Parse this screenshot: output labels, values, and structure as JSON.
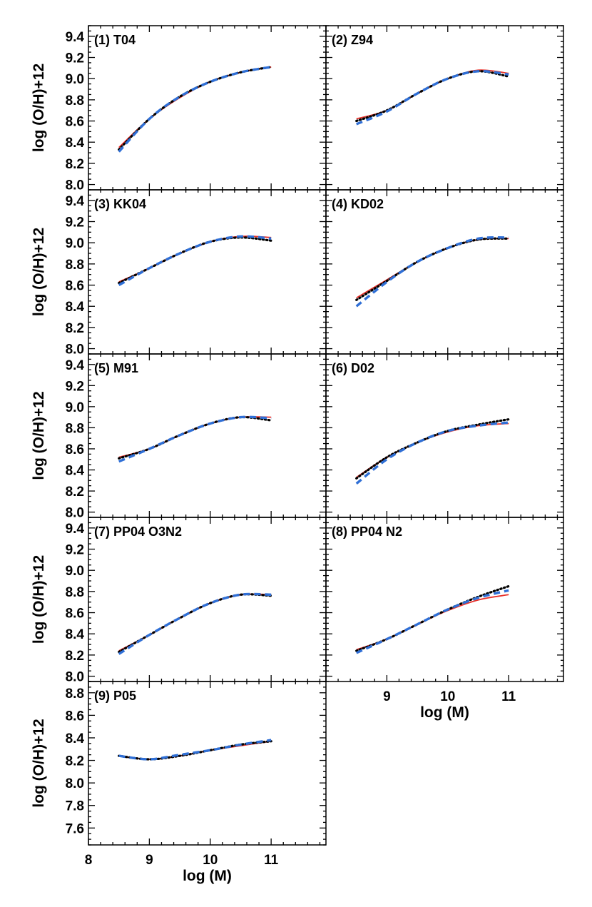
{
  "chart_data": [
    {
      "type": "line",
      "panel_label": "(1) T04",
      "ylabel": "log (O/H)+12",
      "xlabel": "",
      "xlim": [
        8,
        11.9
      ],
      "ylim": [
        7.95,
        9.5
      ],
      "yticks": [
        "8.0",
        "8.2",
        "8.4",
        "8.6",
        "8.8",
        "9.0",
        "9.2",
        "9.4"
      ],
      "xticks": [],
      "series": [
        {
          "name": "red-solid",
          "x": [
            8.5,
            9,
            9.5,
            10,
            10.5,
            11
          ],
          "values": [
            8.35,
            8.62,
            8.82,
            8.97,
            9.06,
            9.11
          ]
        },
        {
          "name": "black-dotted",
          "x": [
            8.5,
            9,
            9.5,
            10,
            10.5,
            11
          ],
          "values": [
            8.33,
            8.62,
            8.83,
            8.97,
            9.06,
            9.11
          ]
        },
        {
          "name": "blue-dashed",
          "x": [
            8.5,
            9,
            9.5,
            10,
            10.5,
            11
          ],
          "values": [
            8.31,
            8.62,
            8.83,
            8.97,
            9.06,
            9.11
          ]
        }
      ]
    },
    {
      "type": "line",
      "panel_label": "(2) Z94",
      "ylabel": "",
      "xlabel": "",
      "xlim": [
        8,
        11.9
      ],
      "ylim": [
        7.95,
        9.5
      ],
      "yticks": [],
      "xticks": [],
      "series": [
        {
          "name": "red-solid",
          "x": [
            8.5,
            9,
            9.5,
            10,
            10.5,
            11
          ],
          "values": [
            8.62,
            8.7,
            8.86,
            9.0,
            9.08,
            9.05
          ]
        },
        {
          "name": "black-dotted",
          "x": [
            8.5,
            9,
            9.5,
            10,
            10.5,
            11
          ],
          "values": [
            8.6,
            8.7,
            8.86,
            9.0,
            9.07,
            9.02
          ]
        },
        {
          "name": "blue-dashed",
          "x": [
            8.5,
            9,
            9.5,
            10,
            10.5,
            11
          ],
          "values": [
            8.57,
            8.69,
            8.86,
            9.0,
            9.07,
            9.04
          ]
        }
      ]
    },
    {
      "type": "line",
      "panel_label": "(3) KK04",
      "ylabel": "log (O/H)+12",
      "xlabel": "",
      "xlim": [
        8,
        11.9
      ],
      "ylim": [
        7.95,
        9.5
      ],
      "yticks": [
        "8.0",
        "8.2",
        "8.4",
        "8.6",
        "8.8",
        "9.0",
        "9.2",
        "9.4"
      ],
      "xticks": [],
      "series": [
        {
          "name": "red-solid",
          "x": [
            8.5,
            9,
            9.5,
            10,
            10.5,
            11
          ],
          "values": [
            8.63,
            8.76,
            8.9,
            9.01,
            9.06,
            9.05
          ]
        },
        {
          "name": "black-dotted",
          "x": [
            8.5,
            9,
            9.5,
            10,
            10.5,
            11
          ],
          "values": [
            8.62,
            8.76,
            8.9,
            9.01,
            9.05,
            9.02
          ]
        },
        {
          "name": "blue-dashed",
          "x": [
            8.5,
            9,
            9.5,
            10,
            10.5,
            11
          ],
          "values": [
            8.6,
            8.76,
            8.9,
            9.01,
            9.06,
            9.04
          ]
        }
      ]
    },
    {
      "type": "line",
      "panel_label": "(4) KD02",
      "ylabel": "",
      "xlabel": "",
      "xlim": [
        8,
        11.9
      ],
      "ylim": [
        7.95,
        9.5
      ],
      "yticks": [],
      "xticks": [],
      "series": [
        {
          "name": "red-solid",
          "x": [
            8.5,
            9,
            9.5,
            10,
            10.5,
            11
          ],
          "values": [
            8.48,
            8.65,
            8.82,
            8.95,
            9.03,
            9.04
          ]
        },
        {
          "name": "black-dotted",
          "x": [
            8.5,
            9,
            9.5,
            10,
            10.5,
            11
          ],
          "values": [
            8.46,
            8.64,
            8.82,
            8.95,
            9.03,
            9.04
          ]
        },
        {
          "name": "blue-dashed",
          "x": [
            8.5,
            9,
            9.5,
            10,
            10.5,
            11
          ],
          "values": [
            8.4,
            8.63,
            8.82,
            8.95,
            9.04,
            9.05
          ]
        }
      ]
    },
    {
      "type": "line",
      "panel_label": "(5) M91",
      "ylabel": "log (O/H)+12",
      "xlabel": "",
      "xlim": [
        8,
        11.9
      ],
      "ylim": [
        7.95,
        9.5
      ],
      "yticks": [
        "8.0",
        "8.2",
        "8.4",
        "8.6",
        "8.8",
        "9.0",
        "9.2",
        "9.4"
      ],
      "xticks": [],
      "series": [
        {
          "name": "red-solid",
          "x": [
            8.5,
            9,
            9.5,
            10,
            10.5,
            11
          ],
          "values": [
            8.52,
            8.6,
            8.73,
            8.84,
            8.9,
            8.9
          ]
        },
        {
          "name": "black-dotted",
          "x": [
            8.5,
            9,
            9.5,
            10,
            10.5,
            11
          ],
          "values": [
            8.51,
            8.6,
            8.73,
            8.84,
            8.9,
            8.87
          ]
        },
        {
          "name": "blue-dashed",
          "x": [
            8.5,
            9,
            9.5,
            10,
            10.5,
            11
          ],
          "values": [
            8.48,
            8.6,
            8.73,
            8.84,
            8.9,
            8.89
          ]
        }
      ]
    },
    {
      "type": "line",
      "panel_label": "(6) D02",
      "ylabel": "",
      "xlabel": "",
      "xlim": [
        8,
        11.9
      ],
      "ylim": [
        7.95,
        9.5
      ],
      "yticks": [],
      "xticks": [],
      "series": [
        {
          "name": "red-solid",
          "x": [
            8.5,
            9,
            9.5,
            10,
            10.5,
            11
          ],
          "values": [
            8.33,
            8.52,
            8.66,
            8.76,
            8.82,
            8.84
          ]
        },
        {
          "name": "black-dotted",
          "x": [
            8.5,
            9,
            9.5,
            10,
            10.5,
            11
          ],
          "values": [
            8.32,
            8.52,
            8.66,
            8.77,
            8.83,
            8.88
          ]
        },
        {
          "name": "blue-dashed",
          "x": [
            8.5,
            9,
            9.5,
            10,
            10.5,
            11
          ],
          "values": [
            8.27,
            8.5,
            8.66,
            8.77,
            8.82,
            8.85
          ]
        }
      ]
    },
    {
      "type": "line",
      "panel_label": "(7) PP04 O3N2",
      "ylabel": "log (O/H)+12",
      "xlabel": "",
      "xlim": [
        8,
        11.9
      ],
      "ylim": [
        7.95,
        9.5
      ],
      "yticks": [
        "8.0",
        "8.2",
        "8.4",
        "8.6",
        "8.8",
        "9.0",
        "9.2",
        "9.4"
      ],
      "xticks": [],
      "series": [
        {
          "name": "red-solid",
          "x": [
            8.5,
            9,
            9.5,
            10,
            10.5,
            11
          ],
          "values": [
            8.24,
            8.39,
            8.55,
            8.69,
            8.77,
            8.77
          ]
        },
        {
          "name": "black-dotted",
          "x": [
            8.5,
            9,
            9.5,
            10,
            10.5,
            11
          ],
          "values": [
            8.23,
            8.39,
            8.55,
            8.69,
            8.77,
            8.76
          ]
        },
        {
          "name": "blue-dashed",
          "x": [
            8.5,
            9,
            9.5,
            10,
            10.5,
            11
          ],
          "values": [
            8.21,
            8.39,
            8.55,
            8.69,
            8.77,
            8.77
          ]
        }
      ]
    },
    {
      "type": "line",
      "panel_label": "(8) PP04 N2",
      "ylabel": "",
      "xlabel": "log (M)",
      "xlim": [
        8,
        11.9
      ],
      "ylim": [
        7.95,
        9.5
      ],
      "yticks": [],
      "xticks": [
        "9",
        "10",
        "11"
      ],
      "series": [
        {
          "name": "red-solid",
          "x": [
            8.5,
            9,
            9.5,
            10,
            10.5,
            11
          ],
          "values": [
            8.25,
            8.35,
            8.49,
            8.62,
            8.72,
            8.77
          ]
        },
        {
          "name": "black-dotted",
          "x": [
            8.5,
            9,
            9.5,
            10,
            10.5,
            11
          ],
          "values": [
            8.24,
            8.35,
            8.49,
            8.63,
            8.75,
            8.85
          ]
        },
        {
          "name": "blue-dashed",
          "x": [
            8.5,
            9,
            9.5,
            10,
            10.5,
            11
          ],
          "values": [
            8.22,
            8.35,
            8.49,
            8.63,
            8.74,
            8.81
          ]
        }
      ]
    },
    {
      "type": "line",
      "panel_label": "(9) P05",
      "ylabel": "log (O/H)+12",
      "xlabel": "log (M)",
      "xlim": [
        8,
        11.9
      ],
      "ylim": [
        7.45,
        8.9
      ],
      "yticks": [
        "7.6",
        "7.8",
        "8.0",
        "8.2",
        "8.4",
        "8.6",
        "8.8"
      ],
      "xticks": [
        "8",
        "9",
        "10",
        "11"
      ],
      "series": [
        {
          "name": "red-solid",
          "x": [
            8.5,
            9,
            9.5,
            10,
            10.5,
            11
          ],
          "values": [
            8.24,
            8.21,
            8.24,
            8.29,
            8.33,
            8.37
          ]
        },
        {
          "name": "black-dotted",
          "x": [
            8.5,
            9,
            9.5,
            10,
            10.5,
            11
          ],
          "values": [
            8.24,
            8.21,
            8.24,
            8.29,
            8.34,
            8.37
          ]
        },
        {
          "name": "blue-dashed",
          "x": [
            8.5,
            9,
            9.5,
            10,
            10.5,
            11
          ],
          "values": [
            8.24,
            8.21,
            8.25,
            8.29,
            8.34,
            8.38
          ]
        }
      ]
    }
  ],
  "series_colors": {
    "red-solid": "#e8312a",
    "black-dotted": "#000000",
    "blue-dashed": "#2f6fd6"
  }
}
